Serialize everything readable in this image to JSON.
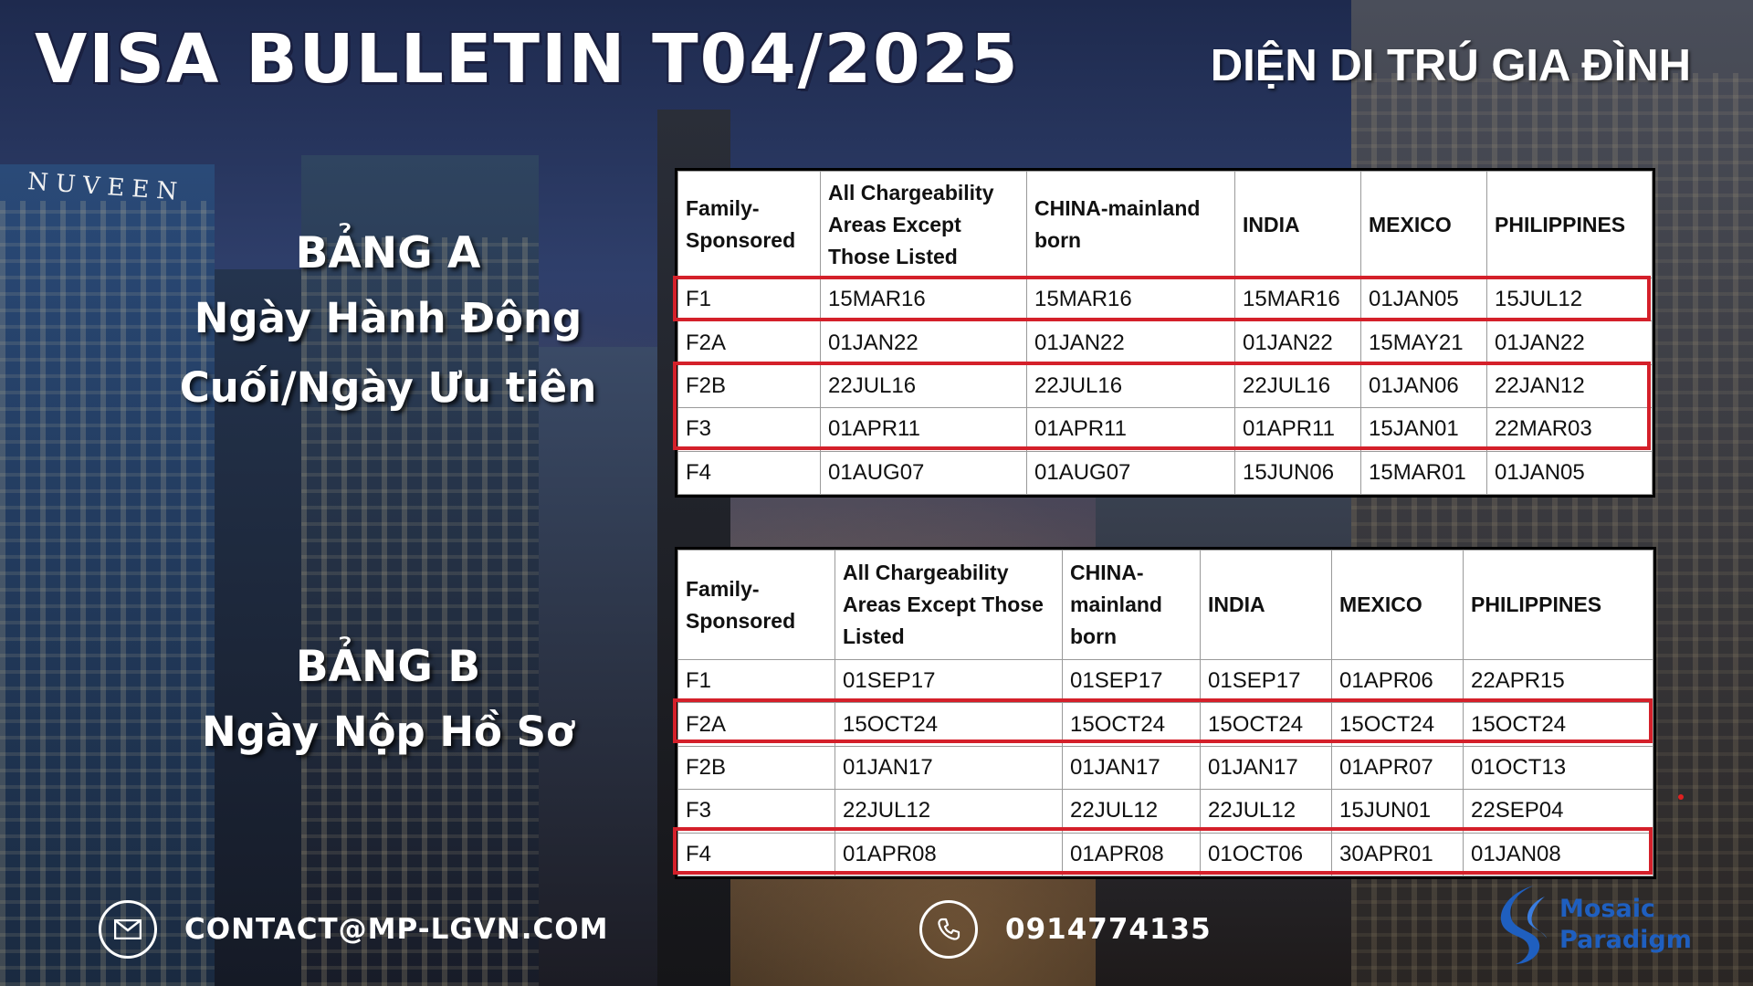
{
  "header": {
    "title": "VISA BULLETIN T04/2025",
    "subtitle": "DIỆN DI TRÚ GIA ĐÌNH"
  },
  "background": {
    "building_sign": "NUVEEN"
  },
  "side_labels": {
    "a": {
      "heading": "BẢNG A",
      "line1": "Ngày Hành Động",
      "line2": "Cuối/Ngày Ưu tiên"
    },
    "b": {
      "heading": "BẢNG B",
      "line1": "Ngày Nộp Hồ Sơ"
    }
  },
  "table_a": {
    "headers": [
      "Family-Sponsored",
      "All Chargeability Areas Except Those Listed",
      "CHINA-mainland born",
      "INDIA",
      "MEXICO",
      "PHILIPPINES"
    ],
    "rows": [
      [
        "F1",
        "15MAR16",
        "15MAR16",
        "15MAR16",
        "01JAN05",
        "15JUL12"
      ],
      [
        "F2A",
        "01JAN22",
        "01JAN22",
        "01JAN22",
        "15MAY21",
        "01JAN22"
      ],
      [
        "F2B",
        "22JUL16",
        "22JUL16",
        "22JUL16",
        "01JAN06",
        "22JAN12"
      ],
      [
        "F3",
        "01APR11",
        "01APR11",
        "01APR11",
        "15JAN01",
        "22MAR03"
      ],
      [
        "F4",
        "01AUG07",
        "01AUG07",
        "15JUN06",
        "15MAR01",
        "01JAN05"
      ]
    ],
    "highlighted_rows": [
      "F1",
      "F2B",
      "F3"
    ]
  },
  "table_b": {
    "headers": [
      "Family-Sponsored",
      "All Chargeability Areas Except Those Listed",
      "CHINA-mainland born",
      "INDIA",
      "MEXICO",
      "PHILIPPINES"
    ],
    "rows": [
      [
        "F1",
        "01SEP17",
        "01SEP17",
        "01SEP17",
        "01APR06",
        "22APR15"
      ],
      [
        "F2A",
        "15OCT24",
        "15OCT24",
        "15OCT24",
        "15OCT24",
        "15OCT24"
      ],
      [
        "F2B",
        "01JAN17",
        "01JAN17",
        "01JAN17",
        "01APR07",
        "01OCT13"
      ],
      [
        "F3",
        "22JUL12",
        "22JUL12",
        "22JUL12",
        "15JUN01",
        "22SEP04"
      ],
      [
        "F4",
        "01APR08",
        "01APR08",
        "01OCT06",
        "30APR01",
        "01JAN08"
      ]
    ],
    "highlighted_rows": [
      "F2A",
      "F4"
    ]
  },
  "footer": {
    "email": "CONTACT@MP-LGVN.COM",
    "phone": "0914774135",
    "logo_line1": "Mosaic",
    "logo_line2": "Paradigm"
  },
  "colors": {
    "highlight": "#d4202a",
    "logo": "#1f5fbf",
    "title_outline": "#1a2040"
  },
  "icons": [
    "mail-icon",
    "phone-icon",
    "mosaic-paradigm-logo-icon"
  ]
}
